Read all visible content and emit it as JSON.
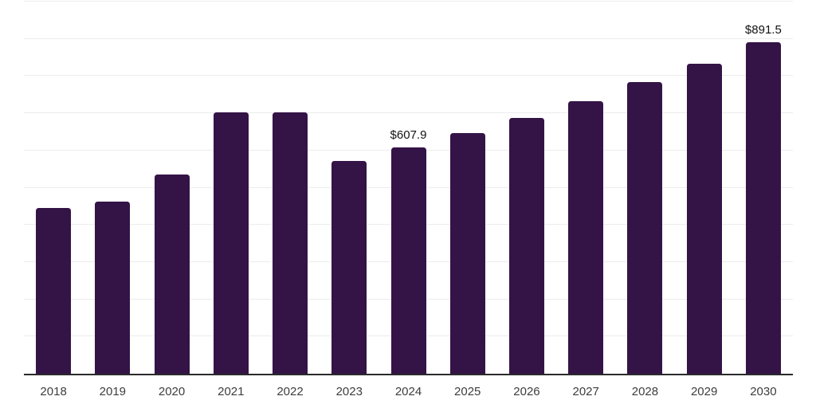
{
  "chart_data": {
    "type": "bar",
    "title": "",
    "xlabel": "",
    "ylabel": "",
    "categories": [
      "2018",
      "2019",
      "2020",
      "2021",
      "2022",
      "2023",
      "2024",
      "2025",
      "2026",
      "2027",
      "2028",
      "2029",
      "2030"
    ],
    "values": [
      445,
      463,
      535,
      703,
      702,
      572,
      607.9,
      647,
      688,
      732,
      783,
      834,
      891.5
    ],
    "data_labels": {
      "2024": "$607.9",
      "2030": "$891.5"
    },
    "ylim": [
      0,
      1000
    ],
    "gridline_step": 100,
    "grid": "horizontal",
    "legend": "none",
    "colors": {
      "bar_fill": "#341346",
      "gridline": "#ececec",
      "axis_line": "#2a2a2a",
      "tick_label": "#3d3d3d",
      "data_label": "#121212",
      "background": "#ffffff"
    }
  }
}
